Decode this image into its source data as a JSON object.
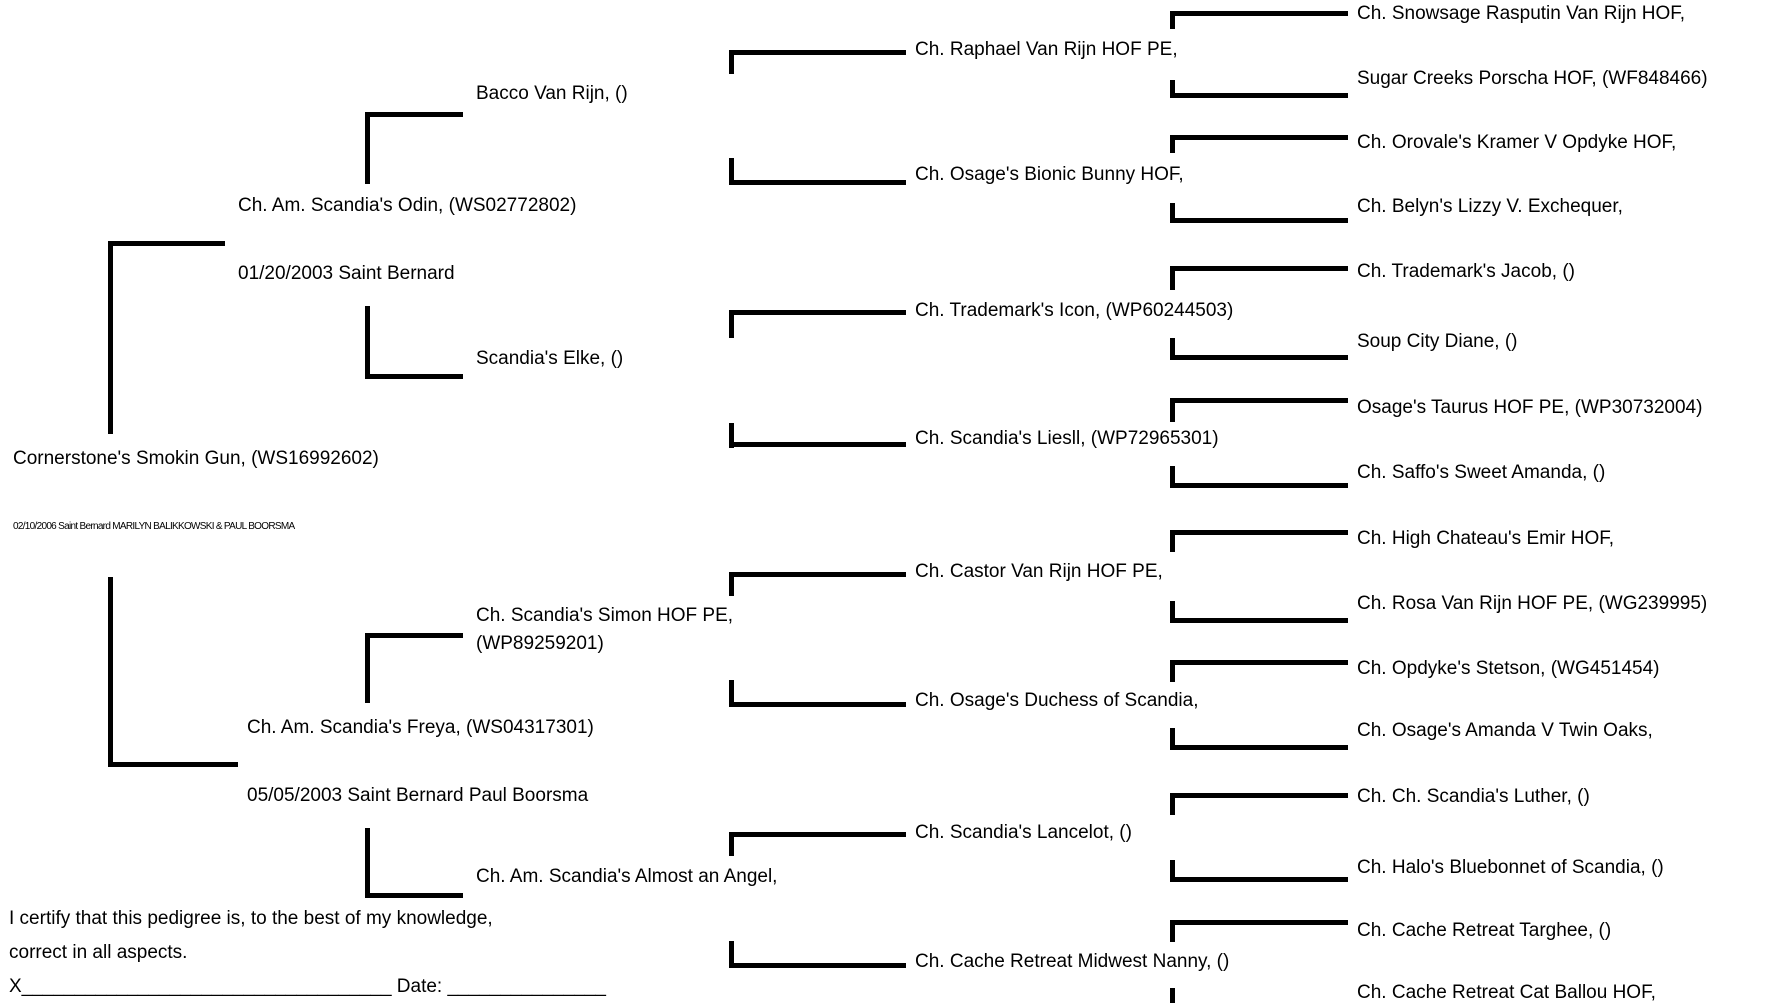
{
  "subject": {
    "name": "Cornerstone's Smokin Gun, (WS16992602)",
    "info": "02/10/2006 Saint Bernard MARILYN BALIKKOWSKI & PAUL BOORSMA"
  },
  "sire": {
    "name": "Ch. Am. Scandia's Odin, (WS02772802)",
    "info": "01/20/2003 Saint Bernard",
    "sire": {
      "name": "Bacco Van Rijn, ()",
      "sire": {
        "name": "Ch. Raphael Van Rijn HOF PE,",
        "sire": "Ch. Snowsage Rasputin Van Rijn HOF,",
        "dam": "Sugar Creeks Porscha HOF, (WF848466)"
      },
      "dam": {
        "name": "Ch. Osage's Bionic Bunny HOF,",
        "sire": "Ch. Orovale's Kramer V Opdyke HOF,",
        "dam": "Ch. Belyn's Lizzy V. Exchequer,"
      }
    },
    "dam": {
      "name": "Scandia's Elke, ()",
      "sire": {
        "name": "Ch. Trademark's Icon, (WP60244503)",
        "sire": "Ch. Trademark's Jacob, ()",
        "dam": "Soup City Diane, ()"
      },
      "dam": {
        "name": "Ch. Scandia's Liesll, (WP72965301)",
        "sire": "Osage's Taurus HOF PE, (WP30732004)",
        "dam": "Ch. Saffo's Sweet Amanda, ()"
      }
    }
  },
  "dam": {
    "name": "Ch. Am. Scandia's Freya, (WS04317301)",
    "info": "05/05/2003 Saint Bernard Paul Boorsma",
    "sire": {
      "name_line1": "Ch. Scandia's Simon HOF PE,",
      "name_line2": "(WP89259201)",
      "sire": {
        "name": "Ch. Castor Van Rijn HOF PE,",
        "sire": "Ch. High Chateau's Emir HOF,",
        "dam": "Ch. Rosa Van Rijn HOF PE, (WG239995)"
      },
      "dam": {
        "name": "Ch. Osage's Duchess of Scandia,",
        "sire": "Ch. Opdyke's Stetson, (WG451454)",
        "dam": "Ch. Osage's Amanda V Twin Oaks,"
      }
    },
    "dam": {
      "name": "Ch. Am. Scandia's Almost an Angel,",
      "sire": {
        "name": "Ch. Scandia's Lancelot, ()",
        "sire": "Ch. Ch. Scandia's Luther, ()",
        "dam": "Ch. Halo's Bluebonnet of Scandia, ()"
      },
      "dam": {
        "name": "Ch. Cache Retreat Midwest Nanny, ()",
        "sire": "Ch. Cache Retreat Targhee, ()",
        "dam": "Ch. Cache Retreat Cat Ballou HOF,"
      }
    }
  },
  "certification": {
    "line1": "I certify that this pedigree is, to the best of my knowledge,",
    "line2": "correct in all aspects.",
    "signature_line": "X___________________________________  Date: _______________"
  }
}
